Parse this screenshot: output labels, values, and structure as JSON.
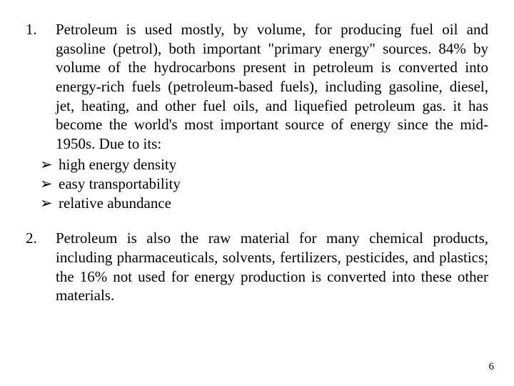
{
  "items": [
    {
      "number": "1.",
      "text": "Petroleum is used mostly, by volume, for producing fuel oil and gasoline (petrol), both important \"primary energy\" sources. 84% by volume of the hydrocarbons present in petroleum is converted into energy-rich fuels (petroleum-based fuels), including gasoline, diesel, jet, heating, and other fuel oils, and liquefied petroleum gas. it has become the world's most important source of energy since the mid-1950s. Due to its:",
      "bullets": [
        "high energy density",
        "easy transportability",
        "relative abundance"
      ]
    },
    {
      "number": "2.",
      "text": "Petroleum is also the raw material for many chemical products, including pharmaceuticals, solvents, fertilizers, pesticides, and plastics; the 16% not used for energy production is converted into these other materials.",
      "bullets": []
    }
  ],
  "bullet_glyph": "➢",
  "page_number": "6",
  "colors": {
    "background": "#ffffff",
    "text": "#000000"
  },
  "typography": {
    "font_family": "Times New Roman",
    "body_fontsize_pt": 16,
    "line_height": 1.28
  }
}
